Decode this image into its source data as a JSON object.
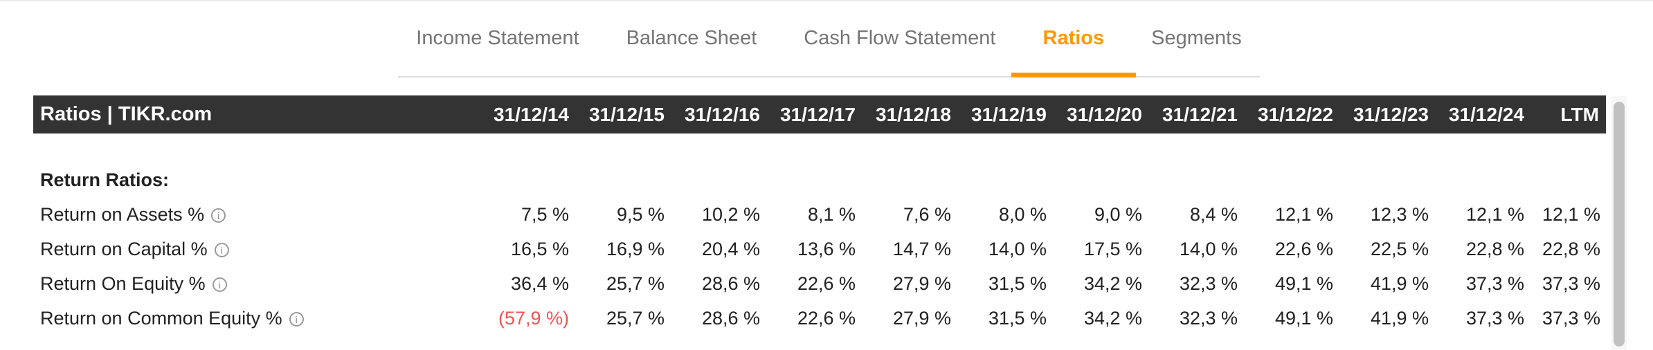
{
  "tabs": {
    "items": [
      {
        "label": "Income Statement",
        "active": false
      },
      {
        "label": "Balance Sheet",
        "active": false
      },
      {
        "label": "Cash Flow Statement",
        "active": false
      },
      {
        "label": "Ratios",
        "active": true
      },
      {
        "label": "Segments",
        "active": false
      }
    ]
  },
  "table": {
    "title": "Ratios | TIKR.com",
    "columns": [
      "31/12/14",
      "31/12/15",
      "31/12/16",
      "31/12/17",
      "31/12/18",
      "31/12/19",
      "31/12/20",
      "31/12/21",
      "31/12/22",
      "31/12/23",
      "31/12/24",
      "LTM"
    ],
    "section_header": "Return Ratios:",
    "rows": [
      {
        "label": "Return on Assets %",
        "has_info_icon": true,
        "values": [
          "7,5 %",
          "9,5 %",
          "10,2 %",
          "8,1 %",
          "7,6 %",
          "8,0 %",
          "9,0 %",
          "8,4 %",
          "12,1 %",
          "12,3 %",
          "12,1 %",
          "12,1 %"
        ],
        "negative_indices": []
      },
      {
        "label": "Return on Capital %",
        "has_info_icon": true,
        "values": [
          "16,5 %",
          "16,9 %",
          "20,4 %",
          "13,6 %",
          "14,7 %",
          "14,0 %",
          "17,5 %",
          "14,0 %",
          "22,6 %",
          "22,5 %",
          "22,8 %",
          "22,8 %"
        ],
        "negative_indices": []
      },
      {
        "label": "Return On Equity %",
        "has_info_icon": true,
        "values": [
          "36,4 %",
          "25,7 %",
          "28,6 %",
          "22,6 %",
          "27,9 %",
          "31,5 %",
          "34,2 %",
          "32,3 %",
          "49,1 %",
          "41,9 %",
          "37,3 %",
          "37,3 %"
        ],
        "negative_indices": []
      },
      {
        "label": "Return on Common Equity %",
        "has_info_icon": true,
        "values": [
          "(57,9 %)",
          "25,7 %",
          "28,6 %",
          "22,6 %",
          "27,9 %",
          "31,5 %",
          "34,2 %",
          "32,3 %",
          "49,1 %",
          "41,9 %",
          "37,3 %",
          "37,3 %"
        ],
        "negative_indices": [
          0
        ]
      }
    ]
  },
  "colors": {
    "accent": "#FF9800",
    "negative": "#EF5350",
    "header_bg": "#333333",
    "tab_inactive": "#757575"
  }
}
